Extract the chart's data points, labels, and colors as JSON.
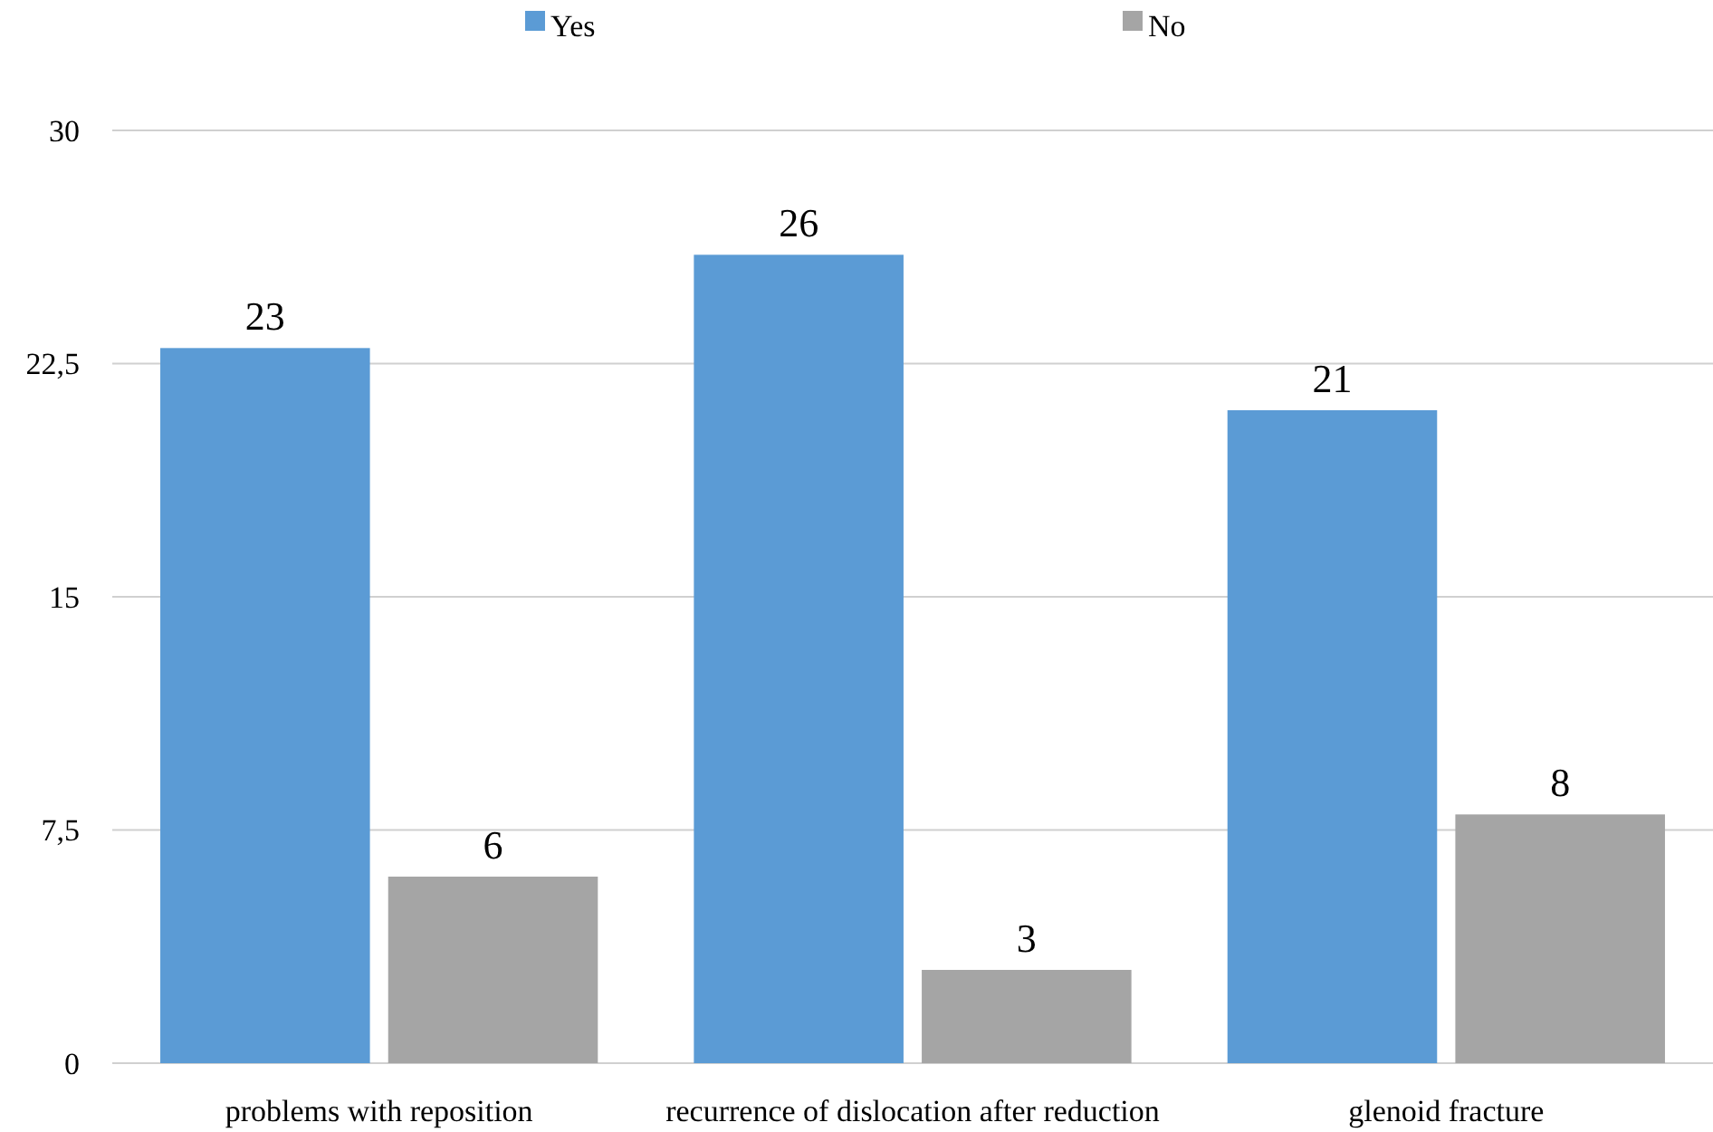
{
  "chart_data": {
    "type": "bar",
    "categories": [
      "problems with reposition",
      "recurrence of dislocation after reduction",
      "glenoid fracture"
    ],
    "series": [
      {
        "name": "Yes",
        "color": "#5b9bd5",
        "values": [
          23,
          26,
          21
        ]
      },
      {
        "name": "No",
        "color": "#a5a5a5",
        "values": [
          6,
          3,
          8
        ]
      }
    ],
    "ylim": [
      0,
      30
    ],
    "yticks": [
      0,
      {
        "value": 7.5,
        "label": "7,5"
      },
      15,
      {
        "value": 22.5,
        "label": "22,5"
      },
      30
    ],
    "grid": "y",
    "legend": "top",
    "data_labels": true
  }
}
